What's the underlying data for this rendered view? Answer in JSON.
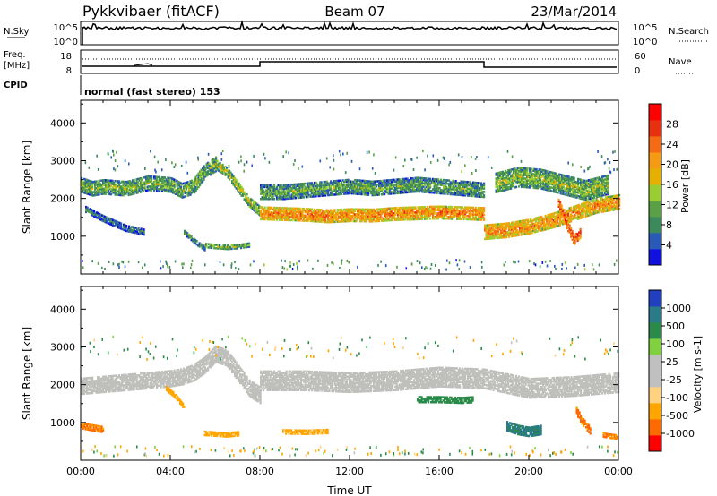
{
  "header": {
    "station": "Pykkvibaer (fitACF)",
    "beam": "Beam 07",
    "date": "23/Mar/2014"
  },
  "top_panels": {
    "nsky_label": "N.Sky",
    "nsearch_label": "N.Search",
    "nsky_ticks": [
      "10^5",
      "10^0"
    ],
    "nsearch_ticks": [
      "10^5",
      "10^0"
    ],
    "freq_label": "Freq.",
    "freq_unit": "[MHz]",
    "freq_ticks": [
      "18",
      "8"
    ],
    "nave_label": "Nave",
    "nave_ticks": [
      "60",
      "0"
    ],
    "cpid_label": "CPID",
    "cpid_value": "normal (fast stereo) 153"
  },
  "colors": {
    "power_scale": [
      "#1010e0",
      "#2a5ab8",
      "#3c8a5c",
      "#5aa046",
      "#9acd32",
      "#e6b000",
      "#f59a14",
      "#f56a14",
      "#e83010",
      "#ff0000"
    ],
    "velocity_scale": [
      "#ff0000",
      "#ff6a00",
      "#ffa500",
      "#ffd27f",
      "#c0c0c0",
      "#c0c0c0",
      "#80d040",
      "#2a8a4a",
      "#2a7a8a",
      "#2040c0"
    ],
    "gray_scatter": "#bfbfbc"
  },
  "chart_data": [
    {
      "type": "heatmap",
      "name": "power",
      "ylabel": "Slant Range [km]",
      "yticks": [
        1000,
        2000,
        3000,
        4000
      ],
      "ylim": [
        0,
        4600
      ],
      "xlim": [
        0,
        24
      ],
      "colorbar": {
        "label": "Power [dB]",
        "ticks": [
          4,
          8,
          12,
          16,
          20,
          24,
          28
        ],
        "range": [
          0,
          32
        ]
      },
      "bands": [
        {
          "x": [
            0,
            0.5,
            1,
            2,
            3,
            4,
            4.5,
            5,
            5.5,
            6
          ],
          "y": [
            2350,
            2250,
            2300,
            2250,
            2400,
            2350,
            2200,
            2300,
            2700,
            2900
          ],
          "width": 380,
          "power": 13
        },
        {
          "x": [
            6,
            6.5,
            7,
            7.5,
            8
          ],
          "y": [
            2900,
            2700,
            2300,
            1900,
            1650
          ],
          "width": 260,
          "power": 15
        },
        {
          "x": [
            8,
            9,
            10,
            11,
            12,
            13,
            14,
            15,
            16,
            17,
            18
          ],
          "y": [
            1600,
            1580,
            1560,
            1520,
            1550,
            1540,
            1580,
            1600,
            1620,
            1600,
            1580
          ],
          "width": 330,
          "power": 23
        },
        {
          "x": [
            8,
            9,
            10,
            11,
            12,
            13,
            14,
            15,
            16,
            17,
            18
          ],
          "y": [
            2150,
            2150,
            2200,
            2250,
            2300,
            2250,
            2300,
            2350,
            2300,
            2250,
            2200
          ],
          "width": 360,
          "power": 12
        },
        {
          "x": [
            18,
            19,
            20,
            21,
            22,
            23,
            24
          ],
          "y": [
            1100,
            1150,
            1250,
            1400,
            1600,
            1800,
            1900
          ],
          "width": 380,
          "power": 22
        },
        {
          "x": [
            18.5,
            19.5,
            20.5,
            21.5,
            22.5,
            23.5
          ],
          "y": [
            2400,
            2550,
            2500,
            2350,
            2200,
            2350
          ],
          "width": 500,
          "power": 14
        },
        {
          "x": [
            5.5,
            6,
            6.5,
            7,
            7.5
          ],
          "y": [
            750,
            720,
            700,
            720,
            760
          ],
          "width": 110,
          "power": 14
        },
        {
          "x": [
            4.6,
            4.9,
            5.2,
            5.5
          ],
          "y": [
            1100,
            950,
            800,
            680
          ],
          "width": 130,
          "power": 11
        },
        {
          "x": [
            0.2,
            1,
            2,
            2.8
          ],
          "y": [
            1700,
            1450,
            1200,
            1100
          ],
          "width": 150,
          "power": 9
        },
        {
          "x": [
            21.3,
            21.6,
            22,
            22.3
          ],
          "y": [
            1900,
            1400,
            900,
            1100
          ],
          "width": 260,
          "power": 27
        }
      ]
    },
    {
      "type": "heatmap",
      "name": "velocity",
      "ylabel": "Slant Range [km]",
      "yticks": [
        1000,
        2000,
        3000,
        4000
      ],
      "ylim": [
        0,
        4600
      ],
      "xlabel": "Time UT",
      "xticks": [
        "00:00",
        "04:00",
        "08:00",
        "12:00",
        "16:00",
        "20:00",
        "00:00"
      ],
      "xlim": [
        0,
        24
      ],
      "colorbar": {
        "label": "Velocity [m s-1]",
        "ticks": [
          1000,
          500,
          100,
          25,
          -25,
          -100,
          -500,
          -1000
        ]
      },
      "bands": [
        {
          "x": [
            0,
            1,
            2,
            3,
            4,
            4.5,
            5,
            5.5,
            6,
            6.5,
            7,
            7.5,
            8
          ],
          "y": [
            1950,
            2000,
            2050,
            2100,
            2150,
            2200,
            2300,
            2500,
            2800,
            2700,
            2300,
            1900,
            1700
          ],
          "width": 420,
          "velocity": 0
        },
        {
          "x": [
            8,
            10,
            12,
            14,
            16,
            18,
            20,
            22,
            24
          ],
          "y": [
            2100,
            2100,
            2050,
            2100,
            2200,
            2150,
            1900,
            1950,
            2050
          ],
          "width": 520,
          "velocity": 0
        },
        {
          "x": [
            15,
            16,
            17,
            17.5
          ],
          "y": [
            1600,
            1600,
            1580,
            1600
          ],
          "width": 160,
          "velocity": 300
        },
        {
          "x": [
            3.8,
            4.2,
            4.6
          ],
          "y": [
            1900,
            1700,
            1400
          ],
          "width": 130,
          "velocity": -300
        },
        {
          "x": [
            5.5,
            6,
            6.5,
            7
          ],
          "y": [
            700,
            680,
            660,
            690
          ],
          "width": 100,
          "velocity": -150
        },
        {
          "x": [
            9,
            10,
            11
          ],
          "y": [
            750,
            740,
            760
          ],
          "width": 120,
          "velocity": -120
        },
        {
          "x": [
            0,
            0.5,
            1
          ],
          "y": [
            900,
            850,
            800
          ],
          "width": 150,
          "velocity": -600
        },
        {
          "x": [
            19,
            19.5,
            20,
            20.5
          ],
          "y": [
            900,
            800,
            750,
            800
          ],
          "width": 260,
          "velocity": 600
        },
        {
          "x": [
            22.1,
            22.4,
            22.7
          ],
          "y": [
            1300,
            1000,
            800
          ],
          "width": 220,
          "velocity": -700
        },
        {
          "x": [
            23.3,
            23.6,
            23.9
          ],
          "y": [
            650,
            620,
            600
          ],
          "width": 90,
          "velocity": -500
        }
      ]
    }
  ]
}
